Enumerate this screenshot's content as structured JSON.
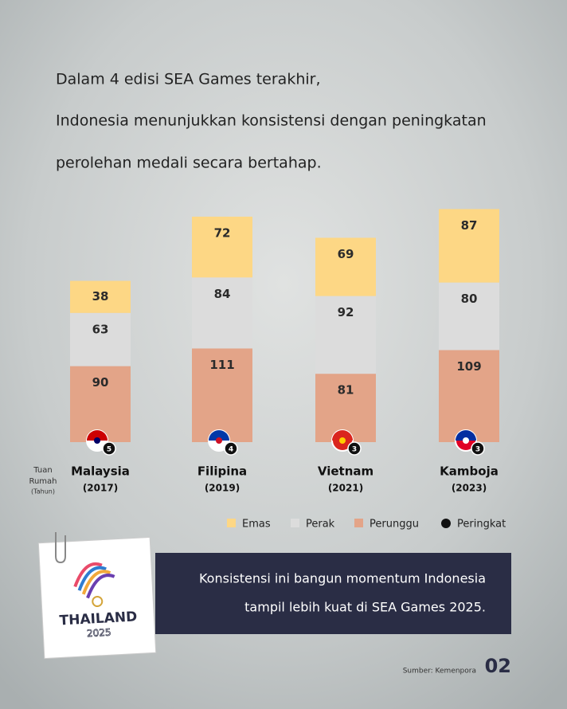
{
  "header": {
    "lines": [
      "Dalam 4 edisi SEA Games terakhir,",
      "Indonesia menunjukkan konsistensi dengan peningkatan",
      "perolehan medali secara bertahap."
    ]
  },
  "chart_data": {
    "type": "bar",
    "stacked": true,
    "categories": [
      "Malaysia",
      "Filipina",
      "Vietnam",
      "Kamboja"
    ],
    "years": [
      "(2017)",
      "(2019)",
      "(2021)",
      "(2023)"
    ],
    "series": [
      {
        "name": "Emas",
        "color": "#fdd785",
        "values": [
          38,
          72,
          69,
          87
        ]
      },
      {
        "name": "Perak",
        "color": "#dcdcdc",
        "values": [
          63,
          84,
          92,
          80
        ]
      },
      {
        "name": "Perunggu",
        "color": "#e3a488",
        "values": [
          90,
          111,
          81,
          109
        ]
      }
    ],
    "ranks": {
      "name": "Peringkat",
      "color": "#111111",
      "values": [
        5,
        4,
        3,
        3
      ]
    },
    "host_label": [
      "Tuan",
      "Rumah",
      "(Tahun)"
    ]
  },
  "callout": {
    "lines": [
      "Konsistensi ini bangun momentum Indonesia",
      "tampil lebih kuat di SEA Games 2025."
    ]
  },
  "logo": {
    "title": "THAILAND",
    "year": "2025"
  },
  "footer": {
    "source": "Sumber: Kemenpora",
    "page": "02"
  }
}
